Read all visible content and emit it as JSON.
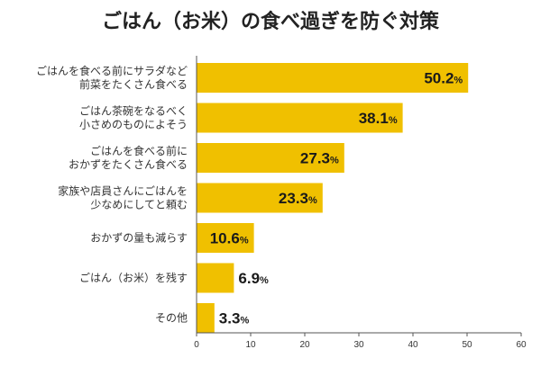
{
  "chart_data": {
    "type": "bar",
    "orientation": "horizontal",
    "title": "ごはん（お米）の食べ過ぎを防ぐ対策",
    "categories": [
      [
        "ごはんを食べる前にサラダなど",
        "前菜をたくさん食べる"
      ],
      [
        "ごはん茶碗をなるべく",
        "小さめのものによそう"
      ],
      [
        "ごはんを食べる前に",
        "おかずをたくさん食べる"
      ],
      [
        "家族や店員さんにごはんを",
        "少なめにしてと頼む"
      ],
      [
        "おかずの量も減らす"
      ],
      [
        "ごはん（お米）を残す"
      ],
      [
        "その他"
      ]
    ],
    "values": [
      50.2,
      38.1,
      27.3,
      23.3,
      10.6,
      6.9,
      3.3
    ],
    "value_labels": [
      "50.2",
      "38.1",
      "27.3",
      "23.3",
      "10.6",
      "6.9",
      "3.3"
    ],
    "value_suffix": "%",
    "xlim": [
      0,
      60
    ],
    "xticks": [
      "0",
      "10",
      "20",
      "30",
      "40",
      "50",
      "60"
    ],
    "xtick_values": [
      0,
      10,
      20,
      30,
      40,
      50,
      60
    ],
    "grid": false,
    "legend": "none",
    "bar_color": "#f0c000",
    "axis_color": "#555555"
  }
}
